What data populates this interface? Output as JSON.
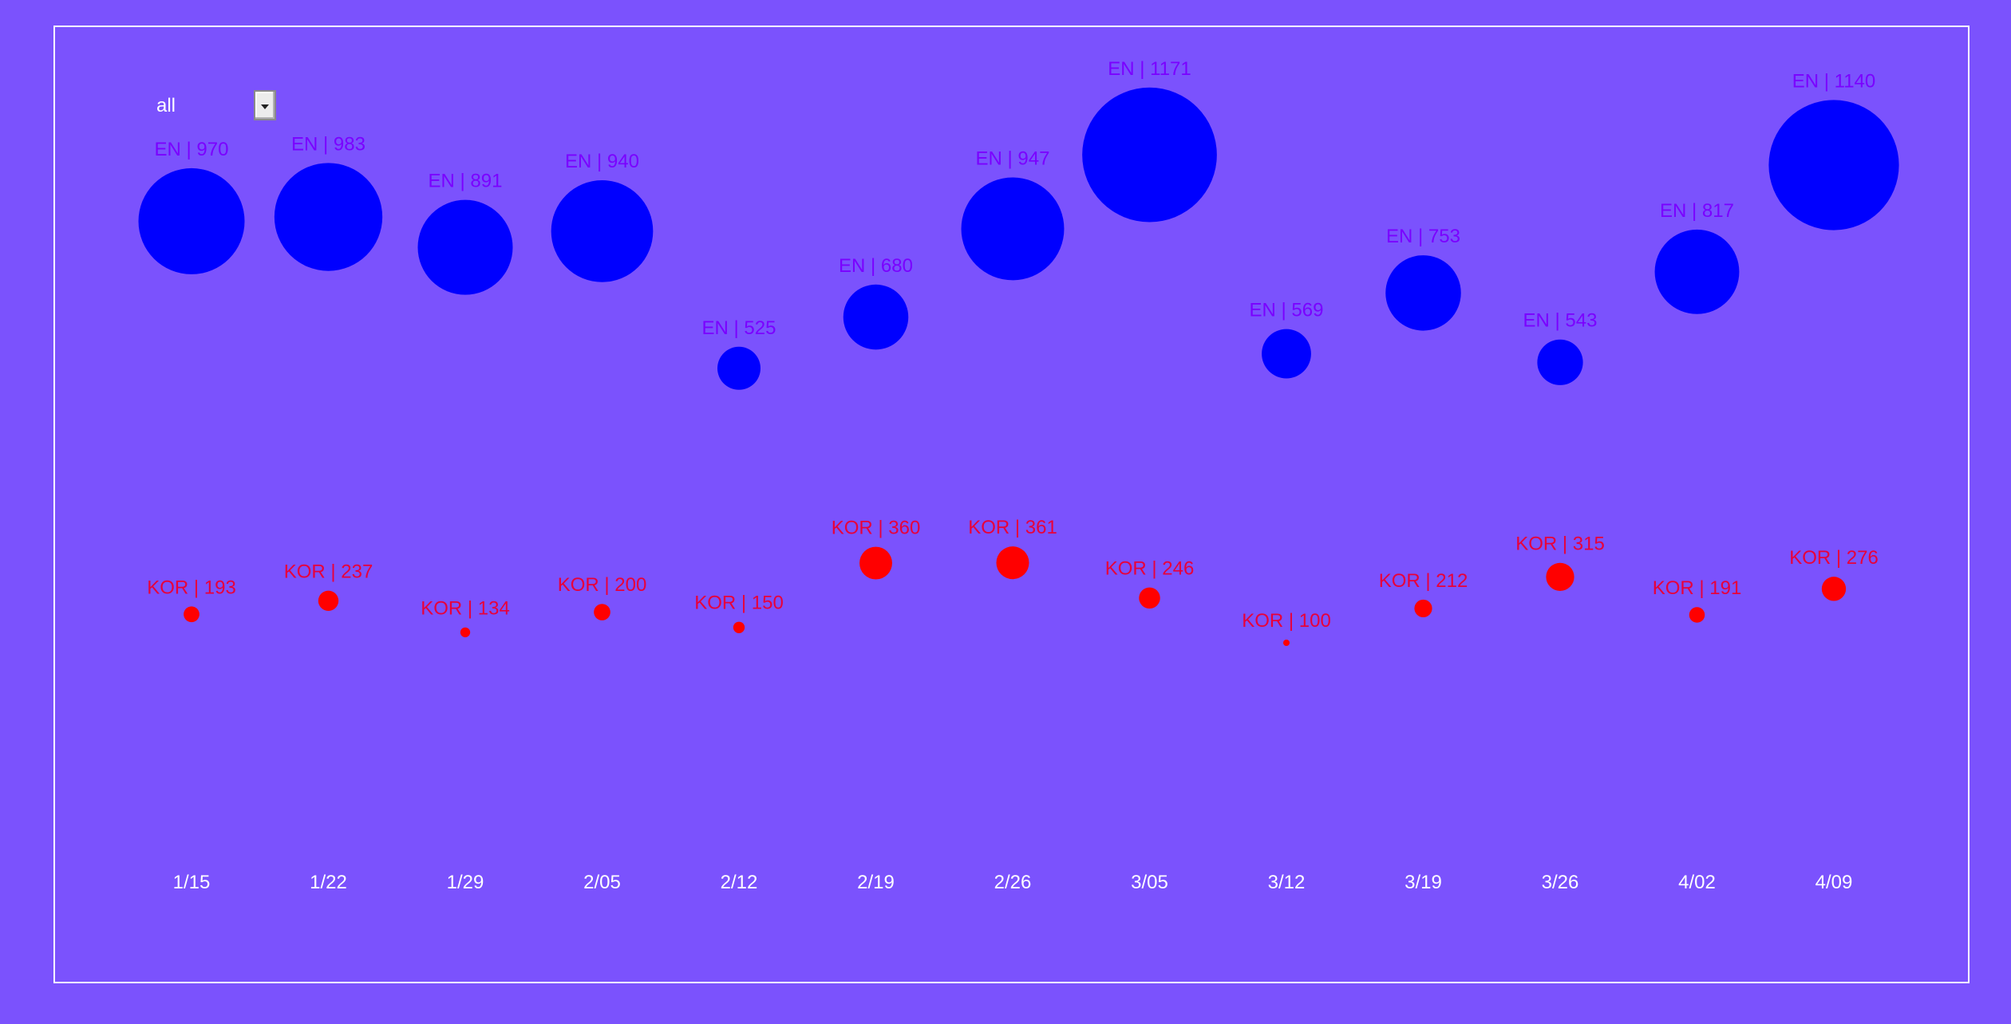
{
  "filter": {
    "selected": "all"
  },
  "colors": {
    "background": "#7b52fd",
    "en": "#0000ff",
    "kor": "#ff0000",
    "en_label": "#7a00ff",
    "kor_label": "#e8003a",
    "axis_label": "#ffffff"
  },
  "chart_data": {
    "type": "scatter",
    "encoding": "bubble",
    "categories": [
      "1/15",
      "1/22",
      "1/29",
      "2/05",
      "2/12",
      "2/19",
      "2/26",
      "3/05",
      "3/12",
      "3/19",
      "3/26",
      "4/02",
      "4/09"
    ],
    "series": [
      {
        "name": "EN",
        "values": [
          970,
          983,
          891,
          940,
          525,
          680,
          947,
          1171,
          569,
          753,
          543,
          817,
          1140
        ]
      },
      {
        "name": "KOR",
        "values": [
          193,
          237,
          134,
          200,
          150,
          360,
          361,
          246,
          100,
          212,
          315,
          191,
          276
        ]
      }
    ],
    "title": "",
    "xlabel": "",
    "ylabel": "",
    "grid": false,
    "legend": "none"
  }
}
